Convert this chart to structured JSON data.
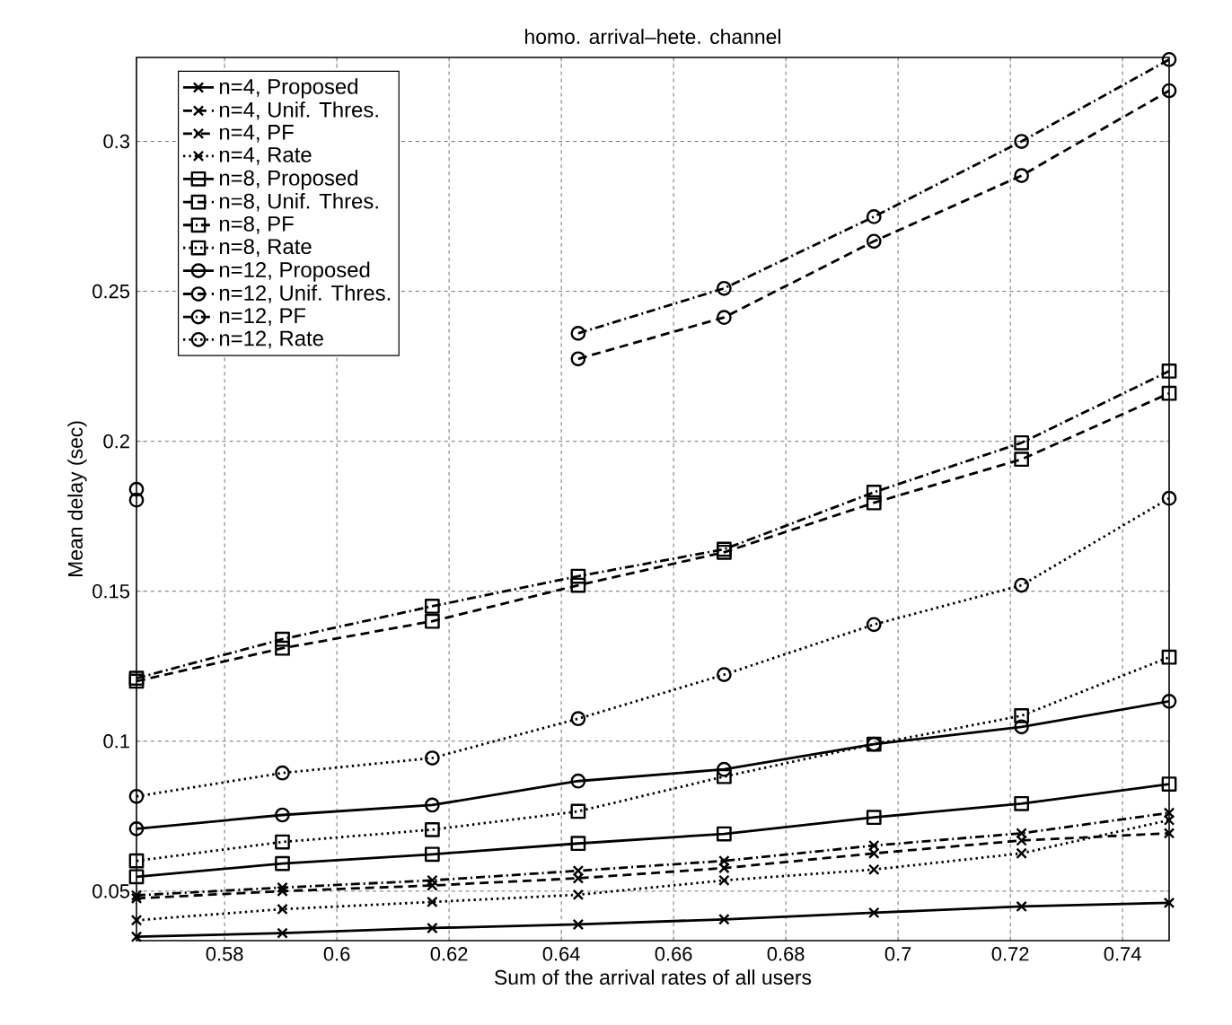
{
  "chart_data": {
    "type": "line",
    "title": "homo. arrival–hete. channel",
    "xlabel": "Sum of the arrival rates of all users",
    "ylabel": "Mean delay (sec)",
    "x": [
      0.5643,
      0.5903,
      0.617,
      0.643,
      0.669,
      0.6957,
      0.722,
      0.7483
    ],
    "xlim": [
      0.5643,
      0.7483
    ],
    "ylim": [
      0.0335,
      0.328
    ],
    "xticks": [
      0.58,
      0.6,
      0.62,
      0.64,
      0.66,
      0.68,
      0.7,
      0.72,
      0.74
    ],
    "yticks": [
      0.05,
      0.1,
      0.15,
      0.2,
      0.25,
      0.3
    ],
    "grid": true,
    "legend": "top left",
    "series": [
      {
        "name": "n=4, Proposed",
        "color": "#000000",
        "marker": "cross",
        "line_style": "solid",
        "values": [
          0.0348,
          0.036,
          0.0377,
          0.0389,
          0.0406,
          0.0428,
          0.0449,
          0.0461
        ]
      },
      {
        "name": "n=4, Unif. Thres.",
        "color": "#000000",
        "marker": "cross",
        "line_style": "dashed",
        "values": [
          0.0476,
          0.05,
          0.0519,
          0.0543,
          0.0577,
          0.0626,
          0.0669,
          0.0693
        ]
      },
      {
        "name": "n=4, PF",
        "color": "#000000",
        "marker": "cross",
        "line_style": "dashdot",
        "values": [
          0.0486,
          0.0512,
          0.0536,
          0.0568,
          0.0601,
          0.0652,
          0.0693,
          0.0761
        ]
      },
      {
        "name": "n=4, Rate",
        "color": "#000000",
        "marker": "cross",
        "line_style": "dotted",
        "values": [
          0.0403,
          0.044,
          0.0464,
          0.0488,
          0.0536,
          0.0572,
          0.0626,
          0.0737
        ]
      },
      {
        "name": "n=8, Proposed",
        "color": "#000000",
        "marker": "square",
        "line_style": "solid",
        "values": [
          0.0548,
          0.0592,
          0.0623,
          0.0659,
          0.0691,
          0.0746,
          0.0792,
          0.0857
        ]
      },
      {
        "name": "n=8, Unif. Thres.",
        "color": "#000000",
        "marker": "square",
        "line_style": "dashed",
        "values": [
          0.12,
          0.131,
          0.14,
          0.152,
          0.163,
          0.1795,
          0.194,
          0.216
        ]
      },
      {
        "name": "n=8, PF",
        "color": "#000000",
        "marker": "square",
        "line_style": "dashdot",
        "values": [
          0.121,
          0.134,
          0.145,
          0.155,
          0.164,
          0.183,
          0.1995,
          0.2234
        ]
      },
      {
        "name": "n=8, Rate",
        "color": "#000000",
        "marker": "square",
        "line_style": "dotted",
        "values": [
          0.0601,
          0.0664,
          0.0705,
          0.0766,
          0.0882,
          0.099,
          0.1085,
          0.128
        ]
      },
      {
        "name": "n=12, Proposed",
        "color": "#000000",
        "marker": "circle",
        "line_style": "solid",
        "values": [
          0.0708,
          0.0754,
          0.0787,
          0.0867,
          0.0906,
          0.099,
          0.1048,
          0.1133
        ]
      },
      {
        "name": "n=12, Unif. Thres.",
        "color": "#000000",
        "marker": "circle",
        "line_style": "dashed",
        "values": [
          0.1804,
          null,
          null,
          0.2275,
          0.2413,
          0.2667,
          0.2886,
          0.3169
        ]
      },
      {
        "name": "n=12, PF",
        "color": "#000000",
        "marker": "circle",
        "line_style": "dashdot",
        "values": [
          0.184,
          null,
          null,
          0.236,
          0.251,
          0.2749,
          0.3,
          0.3273
        ]
      },
      {
        "name": "n=12, Rate",
        "color": "#000000",
        "marker": "circle",
        "line_style": "dotted",
        "values": [
          0.0816,
          0.0894,
          0.0944,
          0.1075,
          0.1222,
          0.1389,
          0.152,
          0.181
        ]
      }
    ]
  }
}
